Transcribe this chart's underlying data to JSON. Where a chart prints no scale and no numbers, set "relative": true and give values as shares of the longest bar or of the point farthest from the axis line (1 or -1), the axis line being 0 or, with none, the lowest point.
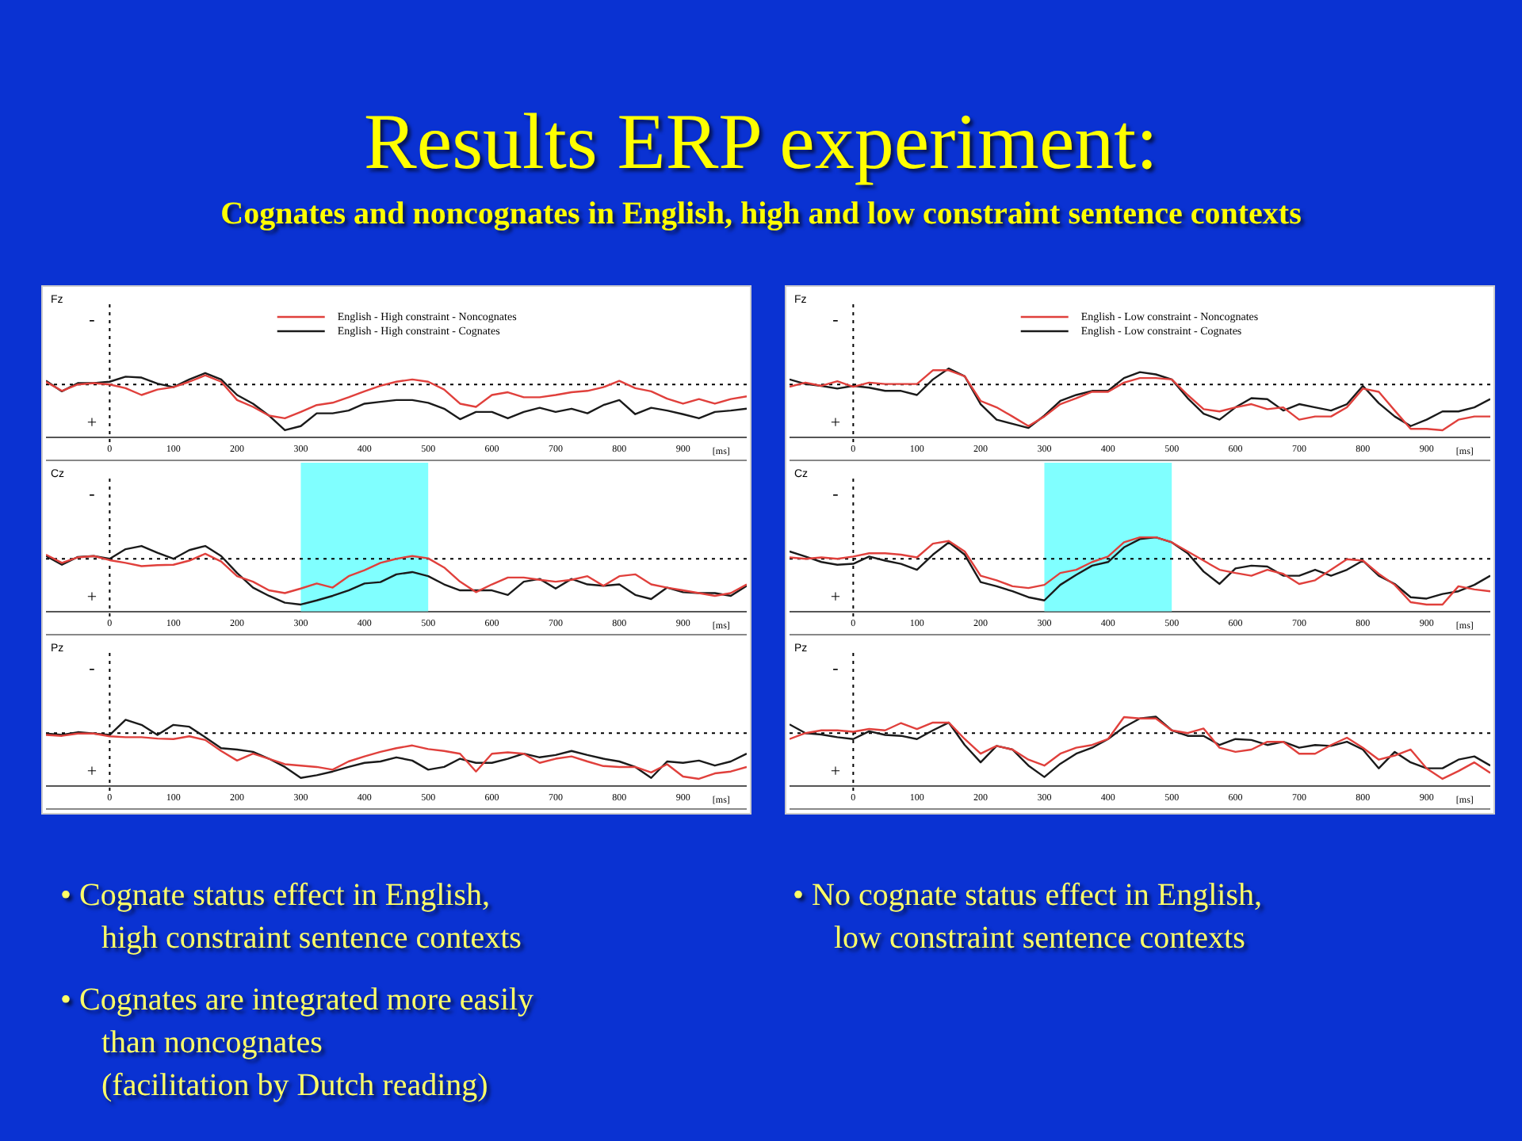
{
  "chart_data": [
    {
      "type": "line",
      "title": "Fz",
      "relative": true,
      "legend": "top",
      "xlabel": "[ms]",
      "xlim": [
        -100,
        1000
      ],
      "xticks": [
        0,
        100,
        200,
        300,
        400,
        500,
        600,
        700,
        800,
        900
      ],
      "annotations": [
        "-",
        "+"
      ],
      "x": [
        -100,
        -75,
        -50,
        -25,
        0,
        25,
        50,
        75,
        100,
        125,
        150,
        175,
        200,
        225,
        250,
        275,
        300,
        325,
        350,
        375,
        400,
        425,
        450,
        475,
        500,
        525,
        550,
        575,
        600,
        625,
        650,
        675,
        700,
        725,
        750,
        775,
        800,
        825,
        850,
        875,
        900,
        925,
        950,
        975,
        1000
      ],
      "series": [
        {
          "name": "English - High constraint - Noncognates",
          "color": "#e0403c",
          "values": [
            0.06,
            -0.14,
            0,
            0.03,
            0,
            -0.08,
            -0.23,
            -0.11,
            -0.06,
            0.06,
            0.2,
            0.06,
            -0.34,
            -0.49,
            -0.68,
            -0.74,
            -0.6,
            -0.45,
            -0.4,
            -0.28,
            -0.15,
            -0.03,
            0.06,
            0.11,
            0.06,
            -0.11,
            -0.42,
            -0.49,
            -0.23,
            -0.17,
            -0.28,
            -0.28,
            -0.23,
            -0.17,
            -0.14,
            -0.06,
            0.08,
            -0.08,
            -0.15,
            -0.31,
            -0.42,
            -0.32,
            -0.42,
            -0.32,
            -0.26
          ]
        },
        {
          "name": "English - High constraint - Cognates",
          "color": "#1a1a1a",
          "values": [
            0.08,
            -0.15,
            0.03,
            0.03,
            0.06,
            0.17,
            0.15,
            0.02,
            -0.06,
            0.11,
            0.25,
            0.11,
            -0.23,
            -0.42,
            -0.68,
            -1,
            -0.91,
            -0.63,
            -0.63,
            -0.57,
            -0.42,
            -0.38,
            -0.34,
            -0.34,
            -0.4,
            -0.53,
            -0.76,
            -0.6,
            -0.6,
            -0.74,
            -0.6,
            -0.51,
            -0.6,
            -0.53,
            -0.63,
            -0.45,
            -0.34,
            -0.65,
            -0.51,
            -0.57,
            -0.65,
            -0.74,
            -0.6,
            -0.57,
            -0.53
          ]
        }
      ]
    },
    {
      "type": "line",
      "title": "Fz",
      "relative": true,
      "legend": "top",
      "xlabel": "[ms]",
      "xlim": [
        -100,
        1000
      ],
      "xticks": [
        0,
        100,
        200,
        300,
        400,
        500,
        600,
        700,
        800,
        900
      ],
      "annotations": [
        "-",
        "+"
      ],
      "x": [
        -100,
        -75,
        -50,
        -25,
        0,
        25,
        50,
        75,
        100,
        125,
        150,
        175,
        200,
        225,
        250,
        275,
        300,
        325,
        350,
        375,
        400,
        425,
        450,
        475,
        500,
        525,
        550,
        575,
        600,
        625,
        650,
        675,
        700,
        725,
        750,
        775,
        800,
        825,
        850,
        875,
        900,
        925,
        950,
        975,
        1000
      ],
      "series": [
        {
          "name": "English - Low constraint - Noncognates",
          "color": "#e0403c",
          "values": [
            -0.05,
            0.04,
            -0.03,
            0.07,
            -0.05,
            0.04,
            0.01,
            0.01,
            0.01,
            0.31,
            0.31,
            0.18,
            -0.36,
            -0.5,
            -0.7,
            -0.91,
            -0.7,
            -0.43,
            -0.3,
            -0.16,
            -0.16,
            0.04,
            0.14,
            0.14,
            0.11,
            -0.23,
            -0.54,
            -0.59,
            -0.5,
            -0.43,
            -0.54,
            -0.5,
            -0.77,
            -0.7,
            -0.7,
            -0.5,
            -0.09,
            -0.16,
            -0.57,
            -0.97,
            -0.97,
            -1,
            -0.77,
            -0.7,
            -0.7
          ]
        },
        {
          "name": "English - Low constraint - Cognates",
          "color": "#1a1a1a",
          "values": [
            0.11,
            0.01,
            -0.03,
            -0.09,
            -0.03,
            -0.07,
            -0.14,
            -0.14,
            -0.23,
            0.11,
            0.35,
            0.18,
            -0.43,
            -0.77,
            -0.86,
            -0.95,
            -0.68,
            -0.36,
            -0.23,
            -0.14,
            -0.14,
            0.14,
            0.27,
            0.22,
            0.11,
            -0.3,
            -0.64,
            -0.77,
            -0.5,
            -0.3,
            -0.32,
            -0.57,
            -0.43,
            -0.5,
            -0.57,
            -0.43,
            -0.03,
            -0.41,
            -0.7,
            -0.91,
            -0.77,
            -0.59,
            -0.59,
            -0.5,
            -0.32
          ]
        }
      ]
    },
    {
      "type": "line",
      "title": "Cz",
      "relative": true,
      "xlabel": "[ms]",
      "xlim": [
        -100,
        1000
      ],
      "xticks": [
        0,
        100,
        200,
        300,
        400,
        500,
        600,
        700,
        800,
        900
      ],
      "annotations": [
        "-",
        "+"
      ],
      "bands": [
        {
          "axis": "x",
          "from": 300,
          "to": 500,
          "color": "#80ffff"
        }
      ],
      "x": [
        -100,
        -75,
        -50,
        -25,
        0,
        25,
        50,
        75,
        100,
        125,
        150,
        175,
        200,
        225,
        250,
        275,
        300,
        325,
        350,
        375,
        400,
        425,
        450,
        475,
        500,
        525,
        550,
        575,
        600,
        625,
        650,
        675,
        700,
        725,
        750,
        775,
        800,
        825,
        850,
        875,
        900,
        925,
        950,
        975,
        1000
      ],
      "series": [
        {
          "color": "#e0403c",
          "values": [
            0.09,
            -0.09,
            0.03,
            0.06,
            -0.03,
            -0.09,
            -0.16,
            -0.14,
            -0.13,
            -0.04,
            0.11,
            -0.06,
            -0.38,
            -0.5,
            -0.69,
            -0.75,
            -0.65,
            -0.54,
            -0.63,
            -0.38,
            -0.25,
            -0.09,
            0,
            0.06,
            0.01,
            -0.19,
            -0.5,
            -0.73,
            -0.56,
            -0.41,
            -0.41,
            -0.46,
            -0.5,
            -0.46,
            -0.38,
            -0.59,
            -0.38,
            -0.34,
            -0.56,
            -0.63,
            -0.69,
            -0.75,
            -0.81,
            -0.75,
            -0.56
          ]
        },
        {
          "color": "#1a1a1a",
          "values": [
            0.06,
            -0.13,
            0.04,
            0.06,
            0,
            0.21,
            0.28,
            0.13,
            0,
            0.19,
            0.28,
            0.06,
            -0.31,
            -0.63,
            -0.81,
            -0.96,
            -1,
            -0.91,
            -0.81,
            -0.69,
            -0.54,
            -0.51,
            -0.34,
            -0.29,
            -0.38,
            -0.56,
            -0.69,
            -0.69,
            -0.69,
            -0.79,
            -0.5,
            -0.44,
            -0.65,
            -0.44,
            -0.56,
            -0.59,
            -0.56,
            -0.79,
            -0.88,
            -0.63,
            -0.73,
            -0.75,
            -0.75,
            -0.81,
            -0.59
          ]
        }
      ]
    },
    {
      "type": "line",
      "title": "Cz",
      "relative": true,
      "xlabel": "[ms]",
      "xlim": [
        -100,
        1000
      ],
      "xticks": [
        0,
        100,
        200,
        300,
        400,
        500,
        600,
        700,
        800,
        900
      ],
      "annotations": [
        "-",
        "+"
      ],
      "bands": [
        {
          "axis": "x",
          "from": 300,
          "to": 500,
          "color": "#80ffff"
        }
      ],
      "x": [
        -100,
        -75,
        -50,
        -25,
        0,
        25,
        50,
        75,
        100,
        125,
        150,
        175,
        200,
        225,
        250,
        275,
        300,
        325,
        350,
        375,
        400,
        425,
        450,
        475,
        500,
        525,
        550,
        575,
        600,
        625,
        650,
        675,
        700,
        725,
        750,
        775,
        800,
        825,
        850,
        875,
        900,
        925,
        950,
        975,
        1000
      ],
      "series": [
        {
          "color": "#e0403c",
          "values": [
            0.03,
            0,
            0.03,
            0,
            0.05,
            0.12,
            0.12,
            0.09,
            0.03,
            0.33,
            0.39,
            0.16,
            -0.37,
            -0.47,
            -0.6,
            -0.64,
            -0.57,
            -0.31,
            -0.24,
            -0.07,
            0.05,
            0.36,
            0.47,
            0.47,
            0.36,
            0.16,
            -0.04,
            -0.24,
            -0.31,
            -0.37,
            -0.24,
            -0.33,
            -0.55,
            -0.47,
            -0.24,
            -0.01,
            -0.04,
            -0.33,
            -0.57,
            -0.95,
            -1,
            -1,
            -0.6,
            -0.67,
            -0.71
          ]
        },
        {
          "color": "#1a1a1a",
          "values": [
            0.16,
            0.05,
            -0.07,
            -0.13,
            -0.11,
            0.05,
            -0.04,
            -0.11,
            -0.24,
            0.09,
            0.36,
            0.09,
            -0.51,
            -0.6,
            -0.71,
            -0.84,
            -0.91,
            -0.57,
            -0.35,
            -0.15,
            -0.07,
            0.25,
            0.43,
            0.47,
            0.36,
            0.12,
            -0.28,
            -0.55,
            -0.21,
            -0.15,
            -0.17,
            -0.37,
            -0.37,
            -0.24,
            -0.37,
            -0.24,
            -0.04,
            -0.37,
            -0.55,
            -0.84,
            -0.87,
            -0.77,
            -0.71,
            -0.57,
            -0.37
          ]
        }
      ]
    },
    {
      "type": "line",
      "title": "Pz",
      "relative": true,
      "xlabel": "[ms]",
      "xlim": [
        -100,
        1000
      ],
      "xticks": [
        0,
        100,
        200,
        300,
        400,
        500,
        600,
        700,
        800,
        900
      ],
      "annotations": [
        "-",
        "+"
      ],
      "x": [
        -100,
        -75,
        -50,
        -25,
        0,
        25,
        50,
        75,
        100,
        125,
        150,
        175,
        200,
        225,
        250,
        275,
        300,
        325,
        350,
        375,
        400,
        425,
        450,
        475,
        500,
        525,
        550,
        575,
        600,
        625,
        650,
        675,
        700,
        725,
        750,
        775,
        800,
        825,
        850,
        875,
        900,
        925,
        950,
        975,
        1000
      ],
      "series": [
        {
          "color": "#e0403c",
          "values": [
            -0.04,
            -0.06,
            -0.01,
            -0.01,
            -0.07,
            -0.09,
            -0.09,
            -0.12,
            -0.13,
            -0.07,
            -0.15,
            -0.39,
            -0.6,
            -0.45,
            -0.56,
            -0.68,
            -0.71,
            -0.74,
            -0.8,
            -0.62,
            -0.51,
            -0.41,
            -0.33,
            -0.27,
            -0.35,
            -0.39,
            -0.45,
            -0.84,
            -0.45,
            -0.42,
            -0.45,
            -0.65,
            -0.56,
            -0.51,
            -0.62,
            -0.72,
            -0.74,
            -0.74,
            -0.86,
            -0.68,
            -0.95,
            -1,
            -0.88,
            -0.84,
            -0.74
          ]
        },
        {
          "color": "#1a1a1a",
          "values": [
            -0.01,
            -0.04,
            0.02,
            -0.01,
            -0.04,
            0.29,
            0.18,
            -0.04,
            0.18,
            0.14,
            -0.09,
            -0.33,
            -0.36,
            -0.41,
            -0.56,
            -0.74,
            -0.98,
            -0.92,
            -0.84,
            -0.74,
            -0.65,
            -0.62,
            -0.53,
            -0.6,
            -0.8,
            -0.74,
            -0.56,
            -0.65,
            -0.65,
            -0.56,
            -0.45,
            -0.53,
            -0.48,
            -0.39,
            -0.48,
            -0.56,
            -0.62,
            -0.74,
            -0.98,
            -0.62,
            -0.65,
            -0.6,
            -0.71,
            -0.62,
            -0.45
          ]
        }
      ]
    },
    {
      "type": "line",
      "title": "Pz",
      "relative": true,
      "xlabel": "[ms]",
      "xlim": [
        -100,
        1000
      ],
      "xticks": [
        0,
        100,
        200,
        300,
        400,
        500,
        600,
        700,
        800,
        900
      ],
      "annotations": [
        "-",
        "+"
      ],
      "x": [
        -100,
        -75,
        -50,
        -25,
        0,
        25,
        50,
        75,
        100,
        125,
        150,
        175,
        200,
        225,
        250,
        275,
        300,
        325,
        350,
        375,
        400,
        425,
        450,
        475,
        500,
        525,
        550,
        575,
        600,
        625,
        650,
        675,
        700,
        725,
        750,
        775,
        800,
        825,
        850,
        875,
        900,
        925,
        950,
        975,
        1000
      ],
      "series": [
        {
          "color": "#e0403c",
          "values": [
            -0.13,
            0,
            0.06,
            0.06,
            0.03,
            0.09,
            0.06,
            0.22,
            0.09,
            0.23,
            0.23,
            -0.13,
            -0.45,
            -0.28,
            -0.36,
            -0.58,
            -0.71,
            -0.45,
            -0.32,
            -0.26,
            -0.13,
            0.35,
            0.32,
            0.32,
            0.06,
            0,
            0.1,
            -0.32,
            -0.41,
            -0.36,
            -0.19,
            -0.19,
            -0.45,
            -0.45,
            -0.26,
            -0.1,
            -0.32,
            -0.58,
            -0.49,
            -0.36,
            -0.77,
            -1,
            -0.83,
            -0.64,
            -0.87
          ]
        },
        {
          "color": "#1a1a1a",
          "values": [
            0.19,
            0,
            -0.03,
            -0.09,
            -0.13,
            0.04,
            -0.04,
            -0.06,
            -0.13,
            0.06,
            0.23,
            -0.26,
            -0.64,
            -0.28,
            -0.36,
            -0.71,
            -0.96,
            -0.67,
            -0.45,
            -0.32,
            -0.13,
            0.13,
            0.32,
            0.36,
            0.06,
            -0.06,
            -0.06,
            -0.26,
            -0.13,
            -0.15,
            -0.26,
            -0.19,
            -0.32,
            -0.26,
            -0.28,
            -0.19,
            -0.36,
            -0.77,
            -0.41,
            -0.64,
            -0.77,
            -0.77,
            -0.58,
            -0.51,
            -0.71
          ]
        }
      ]
    },
    {
      "type": "other",
      "title": "Results ERP experiment:",
      "subtitle": "Cognates and noncognates in English, high and low constraint sentence contexts",
      "annotations": [
        "•   Cognate status effect in English,\nhigh constraint sentence contexts",
        "•   No cognate status effect in English,\nlow constraint sentence contexts",
        "•   Cognates are integrated more easily\nthan noncognates\n(facilitation by Dutch reading)"
      ]
    }
  ]
}
